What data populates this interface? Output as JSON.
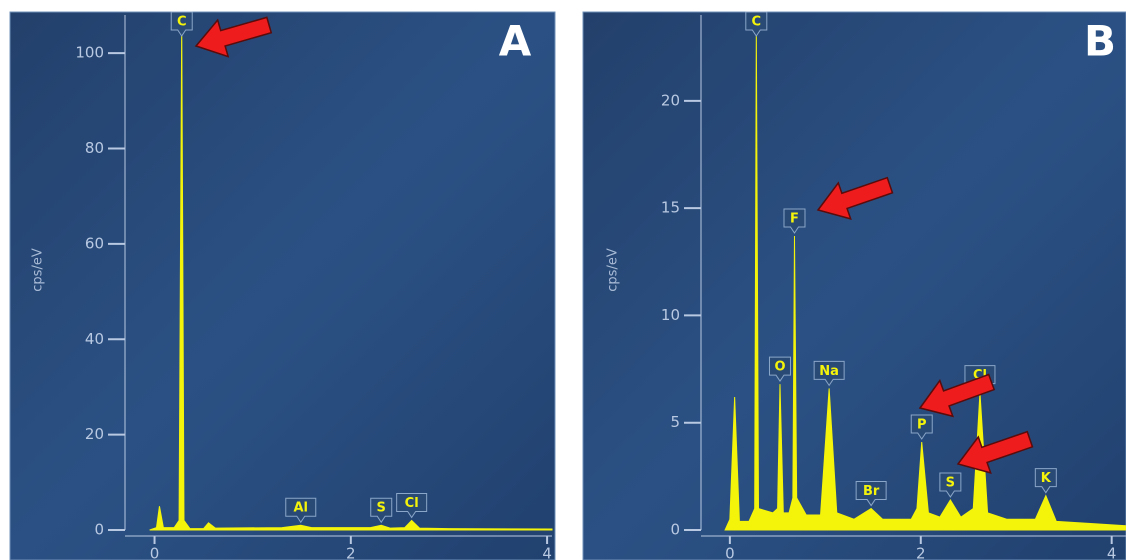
{
  "chart_data": [
    {
      "type": "area",
      "panel": "A",
      "y_label": "cps/eV",
      "color": "#f4f40a",
      "x": [
        -0.05,
        0.02,
        0.05,
        0.09,
        0.2,
        0.25,
        0.277,
        0.3,
        0.36,
        0.5,
        0.55,
        0.62,
        1.3,
        1.49,
        1.6,
        2.2,
        2.31,
        2.4,
        2.55,
        2.62,
        2.7,
        3.0,
        4.05
      ],
      "y": [
        0,
        0.5,
        5,
        0.5,
        0.5,
        2,
        107,
        2,
        0.3,
        0.3,
        1.5,
        0.4,
        0.5,
        1,
        0.5,
        0.5,
        1,
        0.4,
        0.5,
        2,
        0.4,
        0.3,
        0.2
      ],
      "xlim": [
        -0.25,
        4.05
      ],
      "xticks": [
        0,
        2,
        4
      ],
      "ylim": [
        0,
        108
      ],
      "yticks": [
        0,
        20,
        40,
        60,
        80,
        100
      ],
      "annotations": [
        {
          "text": "C",
          "x": 0.277,
          "y": 107
        },
        {
          "text": "Al",
          "x": 1.49,
          "y": 1
        },
        {
          "text": "S",
          "x": 2.31,
          "y": 1
        },
        {
          "text": "Cl",
          "x": 2.62,
          "y": 2
        }
      ]
    },
    {
      "type": "area",
      "panel": "B",
      "y_label": "cps/eV",
      "color": "#f4f40a",
      "x": [
        -0.05,
        0,
        0.05,
        0.1,
        0.2,
        0.26,
        0.277,
        0.3,
        0.45,
        0.5,
        0.525,
        0.56,
        0.62,
        0.66,
        0.677,
        0.7,
        0.8,
        0.95,
        1.04,
        1.12,
        1.3,
        1.48,
        1.6,
        1.9,
        1.96,
        2.01,
        2.08,
        2.2,
        2.31,
        2.42,
        2.55,
        2.62,
        2.7,
        2.9,
        3.2,
        3.31,
        3.42,
        3.8,
        4.15
      ],
      "y": [
        0,
        0.5,
        6.2,
        0.4,
        0.4,
        1,
        23.5,
        1,
        0.8,
        1,
        6.8,
        0.8,
        0.8,
        1.5,
        13.7,
        1.5,
        0.7,
        0.7,
        6.6,
        0.8,
        0.5,
        1,
        0.5,
        0.5,
        1,
        4.1,
        0.8,
        0.6,
        1.4,
        0.6,
        1,
        6.4,
        0.8,
        0.5,
        0.5,
        1.6,
        0.4,
        0.3,
        0.2
      ],
      "xlim": [
        -0.25,
        4.15
      ],
      "xticks": [
        0,
        2,
        4
      ],
      "ylim": [
        0,
        24
      ],
      "yticks": [
        0,
        5,
        10,
        15,
        20
      ],
      "annotations": [
        {
          "text": "C",
          "x": 0.277,
          "y": 23.5
        },
        {
          "text": "O",
          "x": 0.525,
          "y": 6.8
        },
        {
          "text": "F",
          "x": 0.677,
          "y": 13.7
        },
        {
          "text": "Na",
          "x": 1.04,
          "y": 6.6
        },
        {
          "text": "Br",
          "x": 1.48,
          "y": 1
        },
        {
          "text": "P",
          "x": 2.01,
          "y": 4.1
        },
        {
          "text": "S",
          "x": 2.31,
          "y": 1.4
        },
        {
          "text": "Cl",
          "x": 2.62,
          "y": 6.4
        },
        {
          "text": "K",
          "x": 3.31,
          "y": 1.6
        }
      ]
    }
  ]
}
